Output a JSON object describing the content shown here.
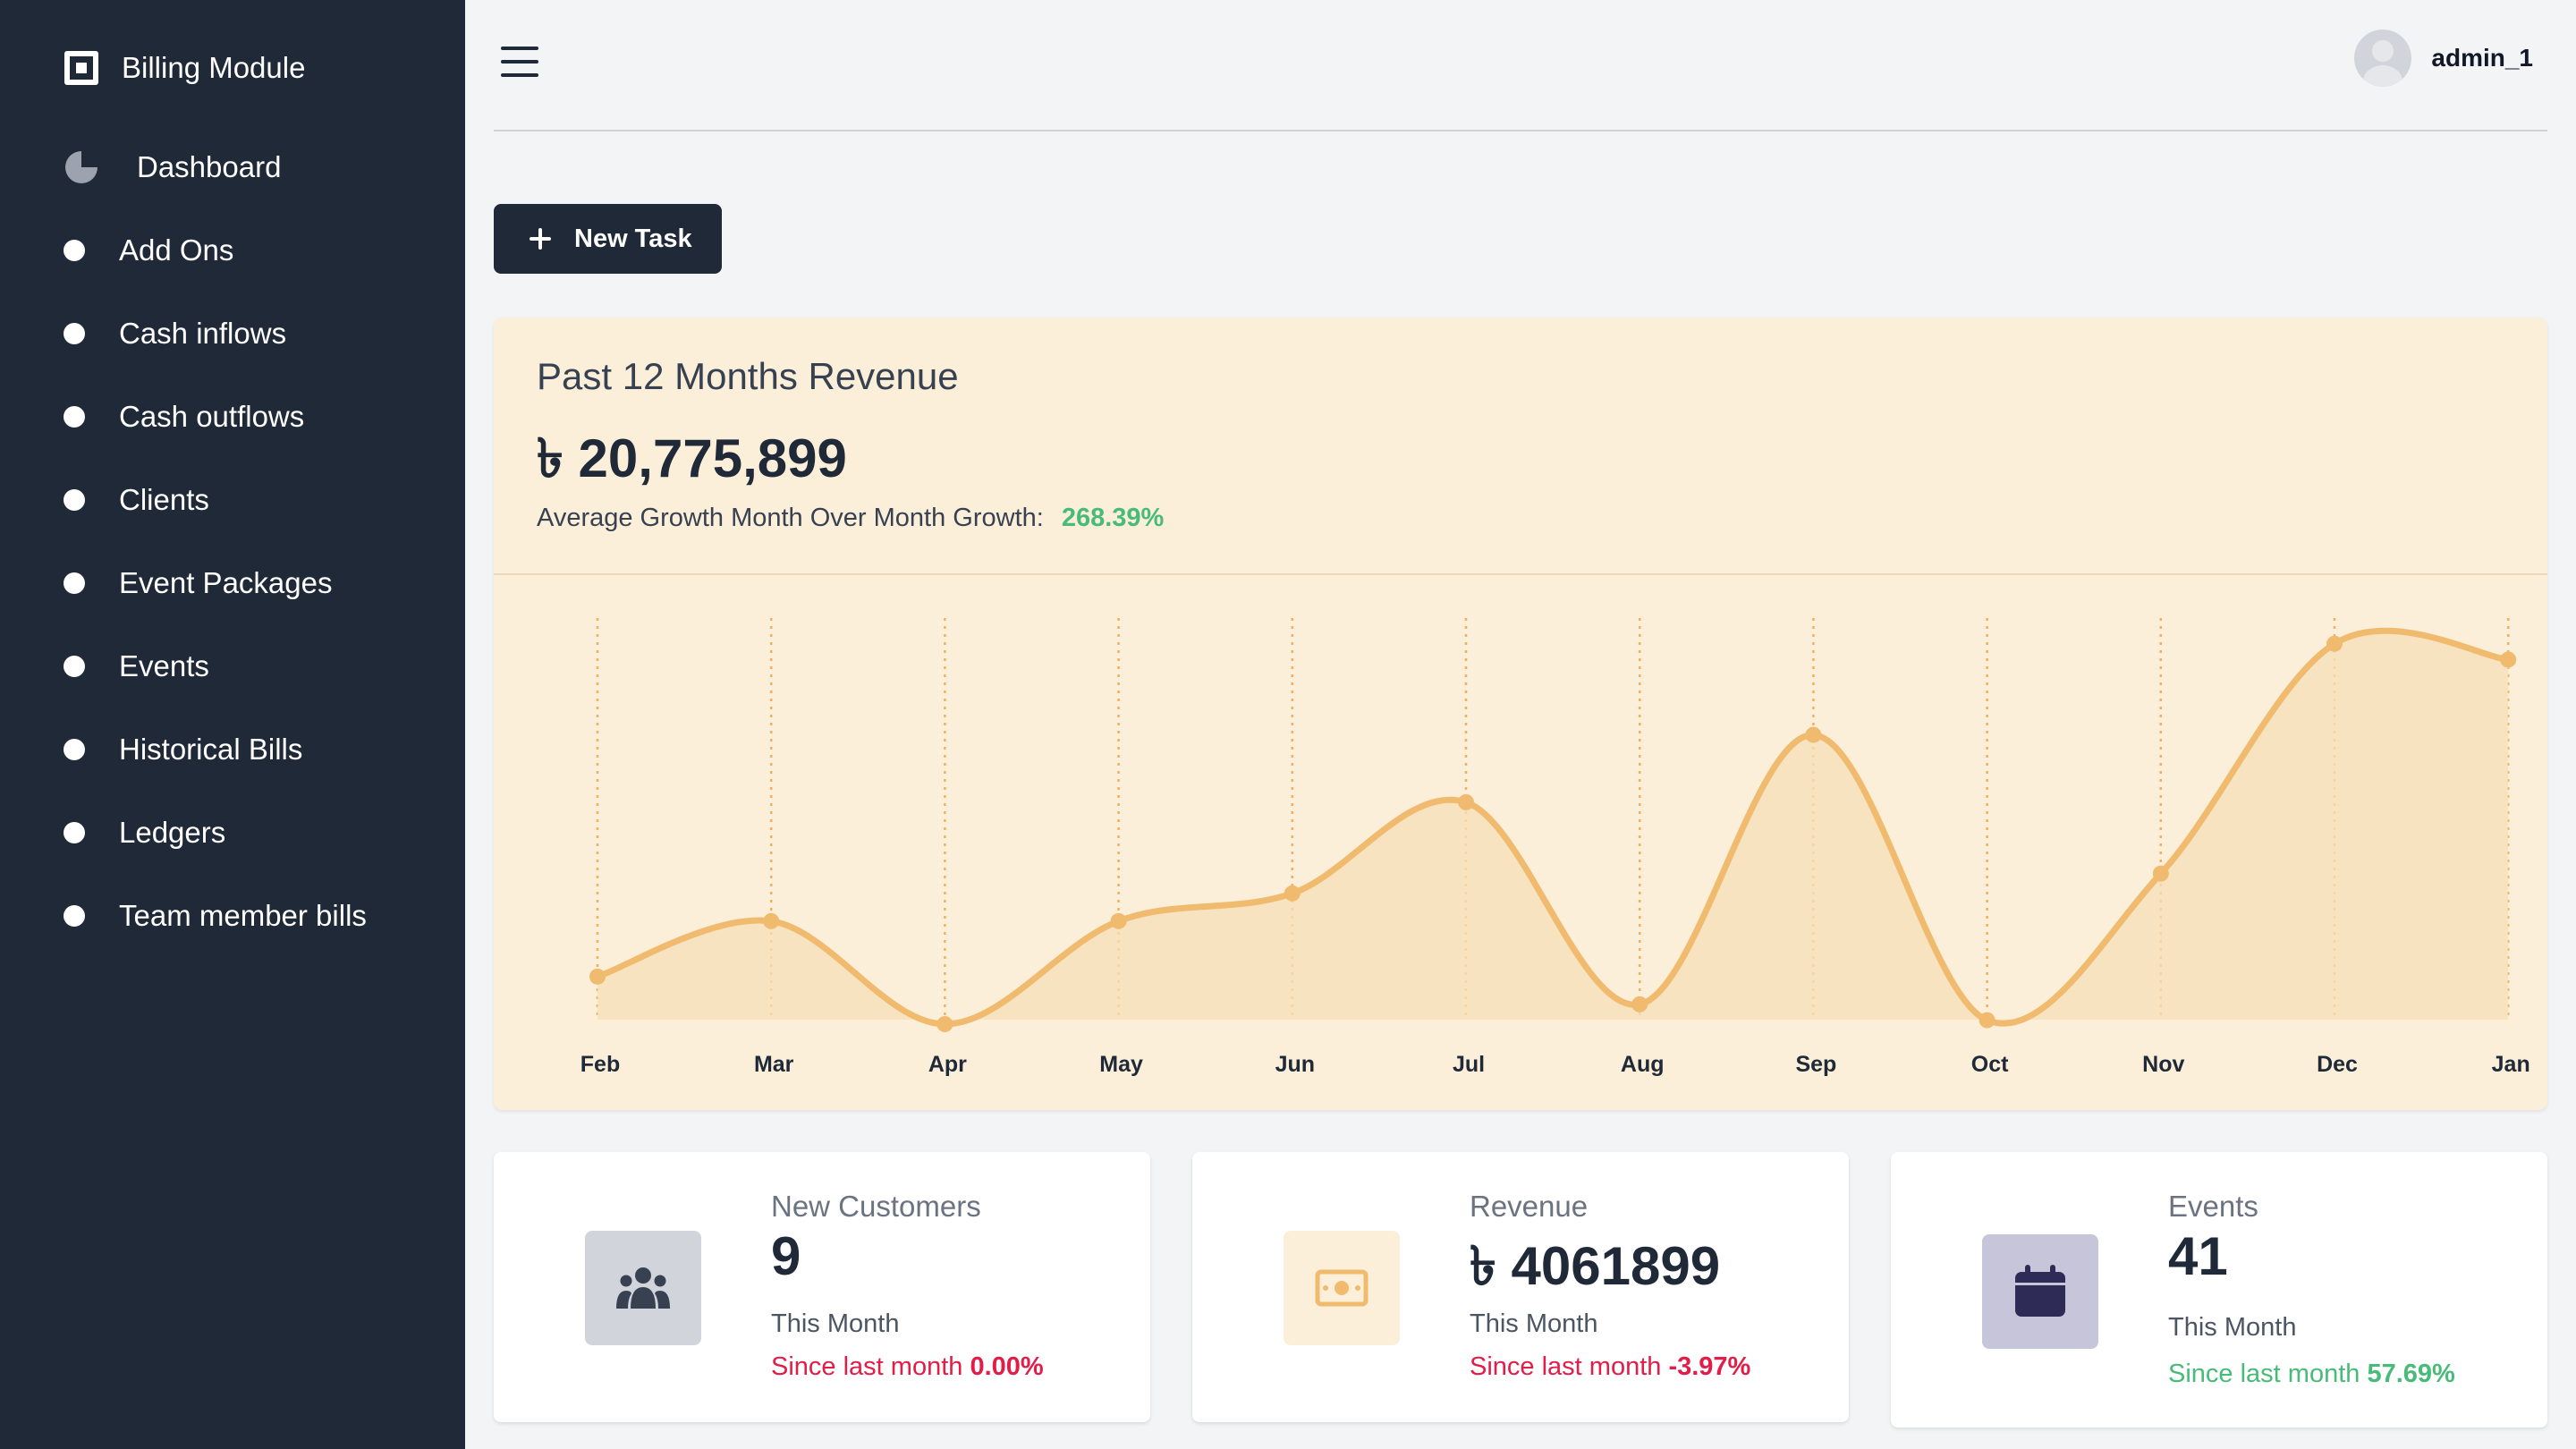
{
  "sidebar": {
    "brand": "Billing Module",
    "items": [
      {
        "label": "Dashboard"
      },
      {
        "label": "Add Ons"
      },
      {
        "label": "Cash inflows"
      },
      {
        "label": "Cash outflows"
      },
      {
        "label": "Clients"
      },
      {
        "label": "Event Packages"
      },
      {
        "label": "Events"
      },
      {
        "label": "Historical Bills"
      },
      {
        "label": "Ledgers"
      },
      {
        "label": "Team member bills"
      }
    ]
  },
  "header": {
    "username": "admin_1"
  },
  "actions": {
    "new_task": "New Task"
  },
  "revenue": {
    "title": "Past 12 Months Revenue",
    "amount": "৳ 20,775,899",
    "growth_label": "Average Growth Month Over Month Growth:",
    "growth_value": "268.39%"
  },
  "chart_data": {
    "type": "area",
    "categories": [
      "Feb",
      "Mar",
      "Apr",
      "May",
      "Jun",
      "Jul",
      "Aug",
      "Sep",
      "Oct",
      "Nov",
      "Dec",
      "Jan"
    ],
    "values": [
      0.12,
      0.26,
      0.0,
      0.26,
      0.33,
      0.56,
      0.05,
      0.73,
      0.01,
      0.38,
      0.96,
      0.92
    ],
    "title": "",
    "xlabel": "",
    "ylabel": "",
    "grid": "vertical dotted",
    "colors": {
      "line": "#f0bb6e",
      "fill": "#f7dfb8",
      "grid": "#f0b060"
    }
  },
  "stats": [
    {
      "label": "New Customers",
      "value": "9",
      "sub": "This Month",
      "since_label": "Since last month",
      "since_value": "0.00%",
      "trend": "negative",
      "icon": "users-icon",
      "icon_bg": "#d1d5db"
    },
    {
      "label": "Revenue",
      "value": "৳ 4061899",
      "sub": "This Month",
      "since_label": "Since last month",
      "since_value": "-3.97%",
      "trend": "negative",
      "icon": "money-icon",
      "icon_bg": "#fbefd9"
    },
    {
      "label": "Events",
      "value": "41",
      "sub": "This Month",
      "since_label": "Since last month",
      "since_value": "57.69%",
      "trend": "positive",
      "icon": "calendar-icon",
      "icon_bg": "#c6c5d9"
    }
  ]
}
